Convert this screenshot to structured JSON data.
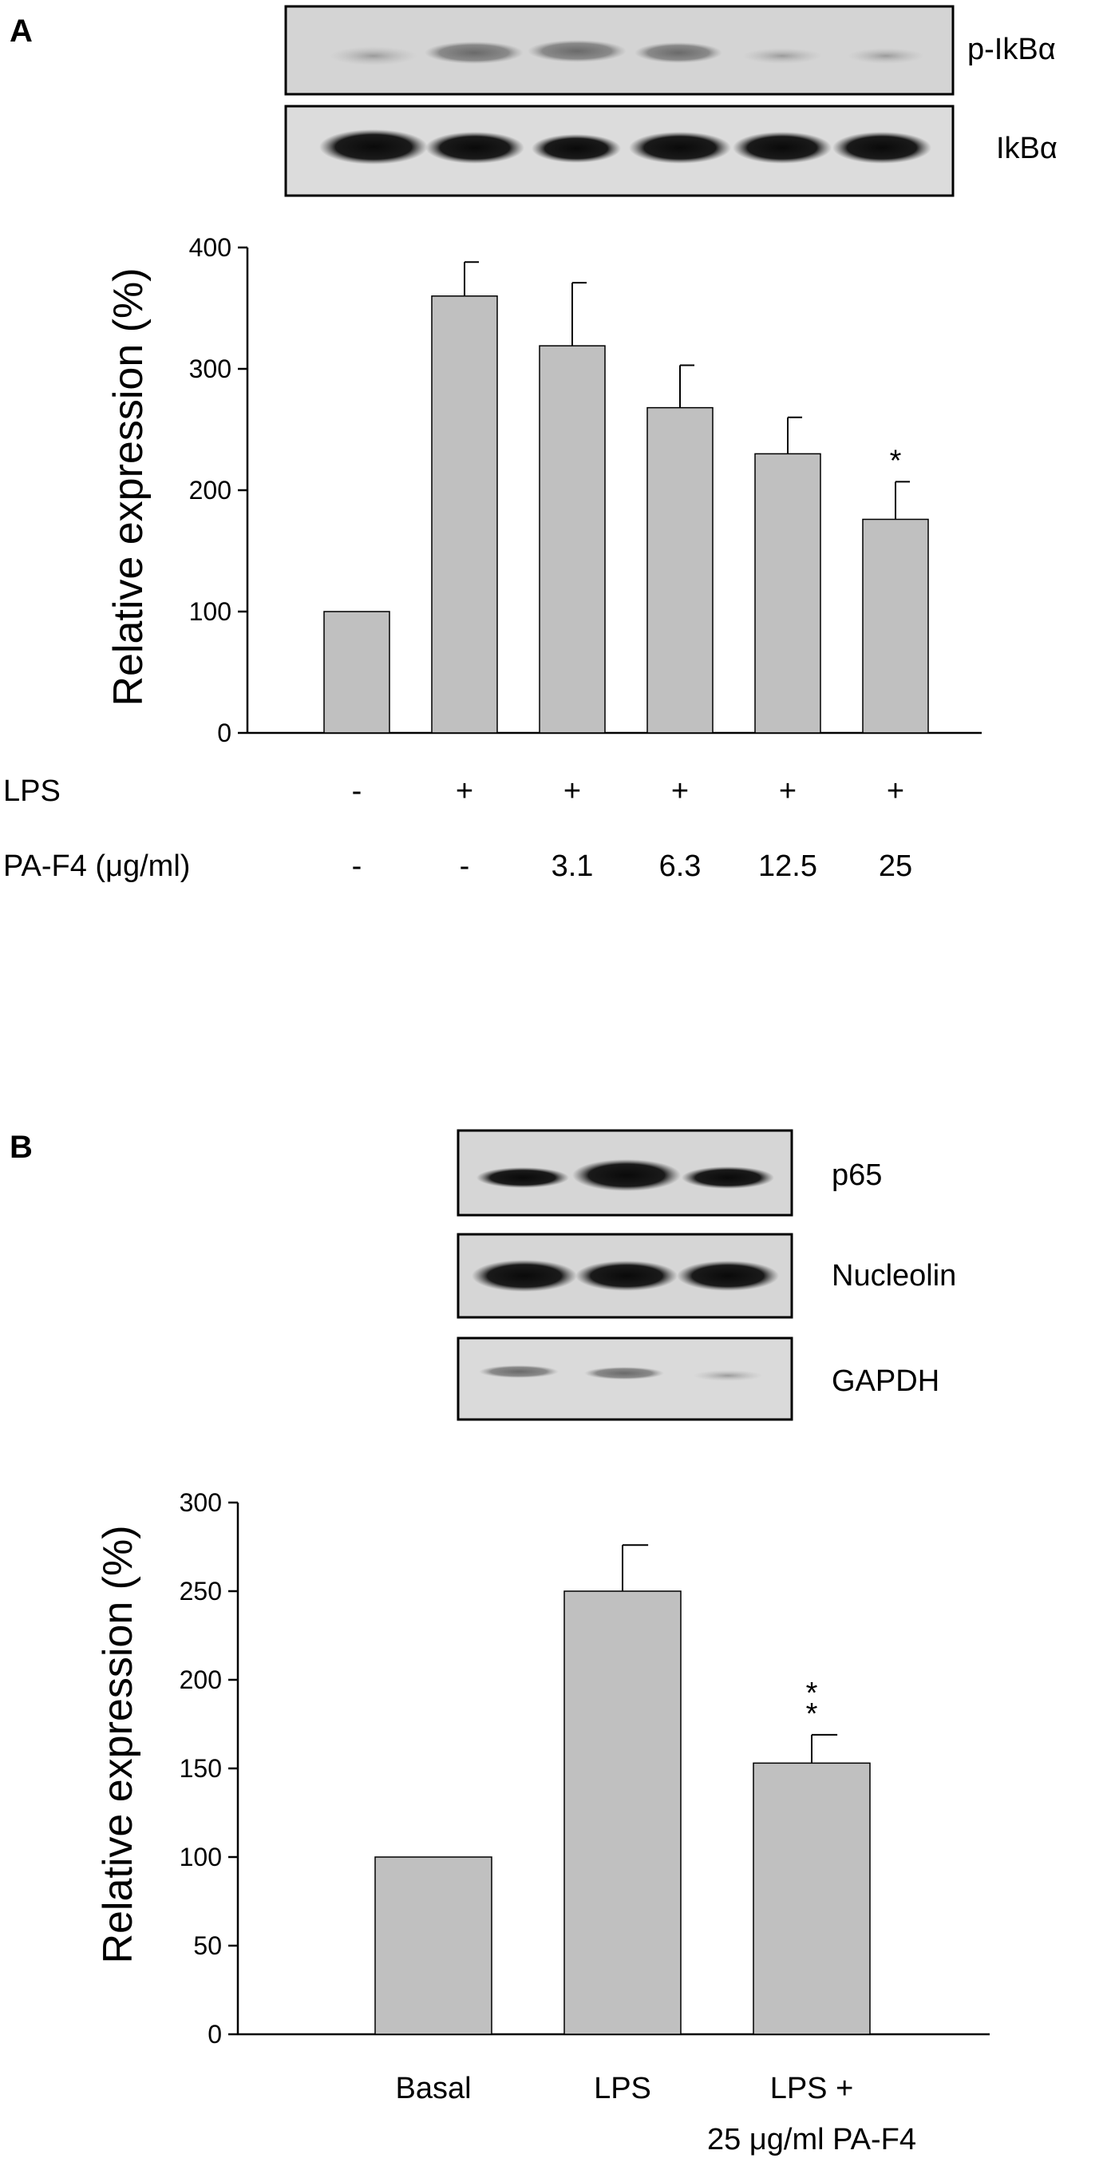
{
  "chart_data": [
    {
      "panel": "A",
      "type": "bar",
      "blot_labels": [
        "p-IkBα",
        "IkBα"
      ],
      "ylabel": "Relative expression (%)",
      "ylim": [
        0,
        400
      ],
      "yticks": [
        0,
        100,
        200,
        300,
        400
      ],
      "condition_rows": [
        {
          "label": "LPS",
          "values": [
            "-",
            "+",
            "+",
            "+",
            "+",
            "+"
          ]
        },
        {
          "label": "PA-F4 (μg/ml)",
          "values": [
            "-",
            "-",
            "3.1",
            "6.3",
            "12.5",
            "25"
          ]
        }
      ],
      "values": [
        100,
        360,
        319,
        268,
        230,
        176
      ],
      "errors": [
        0,
        28,
        52,
        35,
        30,
        31
      ],
      "significance": [
        "",
        "",
        "",
        "",
        "",
        "*"
      ],
      "bar_color": "#c0c0c0"
    },
    {
      "panel": "B",
      "type": "bar",
      "blot_labels": [
        "p65",
        "Nucleolin",
        "GAPDH"
      ],
      "ylabel": "Relative expression (%)",
      "ylim": [
        0,
        300
      ],
      "yticks": [
        0,
        50,
        100,
        150,
        200,
        250,
        300
      ],
      "categories": [
        [
          "Basal"
        ],
        [
          "LPS"
        ],
        [
          "LPS +",
          "25 μg/ml PA-F4"
        ]
      ],
      "values": [
        100,
        250,
        153
      ],
      "errors": [
        0,
        26,
        16
      ],
      "significance": [
        "",
        "",
        "**"
      ],
      "bar_color": "#c0c0c0"
    }
  ]
}
